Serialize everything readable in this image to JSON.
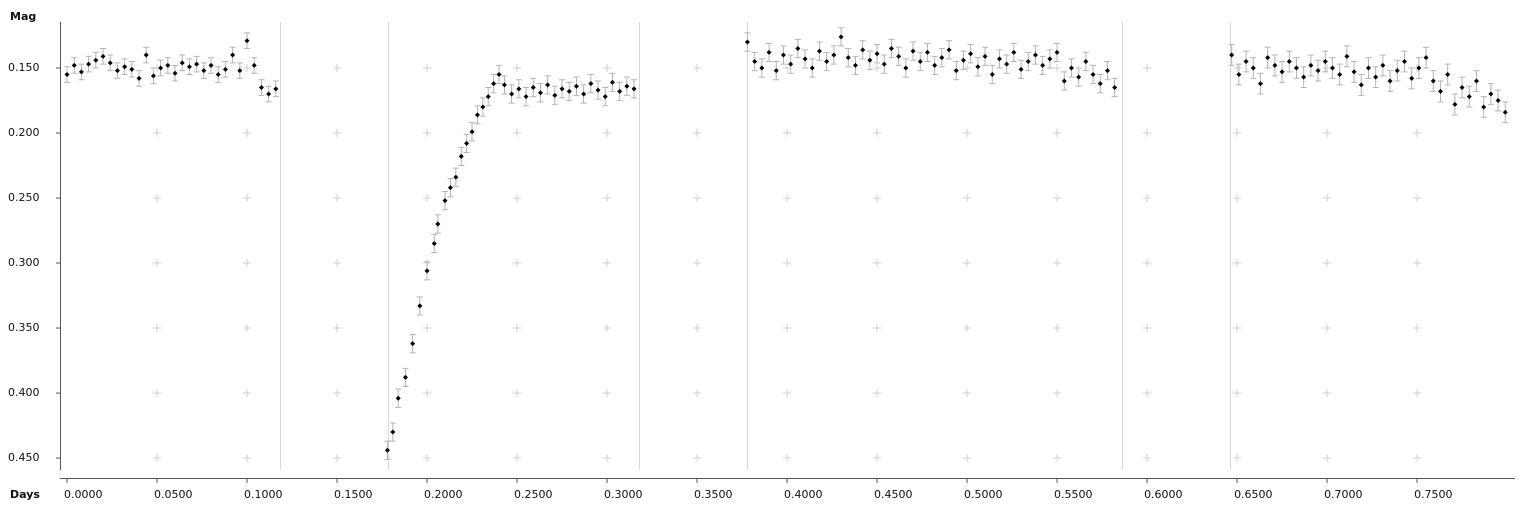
{
  "chart_data": {
    "type": "scatter",
    "y_label": "Mag",
    "x_label": "Days",
    "y_inverted": true,
    "color": "#000000",
    "error_color": "#b4b4b4",
    "xlim": [
      -0.0039,
      0.8044
    ],
    "ylim": [
      0.1146,
      0.4592
    ],
    "xticks": [
      {
        "value": 0,
        "label": "0.0000"
      },
      {
        "value": 0.05,
        "label": "0.0500"
      },
      {
        "value": 0.1,
        "label": "0.1000"
      },
      {
        "value": 0.15,
        "label": "0.1500"
      },
      {
        "value": 0.2,
        "label": "0.2000"
      },
      {
        "value": 0.25,
        "label": "0.2500"
      },
      {
        "value": 0.3,
        "label": "0.3000"
      },
      {
        "value": 0.35,
        "label": "0.3500"
      },
      {
        "value": 0.4,
        "label": "0.4000"
      },
      {
        "value": 0.45,
        "label": "0.4500"
      },
      {
        "value": 0.5,
        "label": "0.5000"
      },
      {
        "value": 0.55,
        "label": "0.5500"
      },
      {
        "value": 0.6,
        "label": "0.6000"
      },
      {
        "value": 0.65,
        "label": "0.6500"
      },
      {
        "value": 0.7,
        "label": "0.7000"
      },
      {
        "value": 0.75,
        "label": "0.7500"
      }
    ],
    "yticks": [
      {
        "value": 0.15,
        "label": "0.150"
      },
      {
        "value": 0.2,
        "label": "0.200"
      },
      {
        "value": 0.25,
        "label": "0.250"
      },
      {
        "value": 0.3,
        "label": "0.300"
      },
      {
        "value": 0.35,
        "label": "0.350"
      },
      {
        "value": 0.4,
        "label": "0.400"
      },
      {
        "value": 0.45,
        "label": "0.450"
      }
    ],
    "grid": true,
    "series": [
      {
        "error": 0.006,
        "x": [
          0.0,
          0.004,
          0.008,
          0.012,
          0.016,
          0.02,
          0.024,
          0.028,
          0.032,
          0.036,
          0.04,
          0.044,
          0.048,
          0.052,
          0.056,
          0.06,
          0.064,
          0.068,
          0.072,
          0.076,
          0.08,
          0.084,
          0.088,
          0.092,
          0.096,
          0.1,
          0.104,
          0.108,
          0.112,
          0.116
        ],
        "values": [
          0.155,
          0.148,
          0.153,
          0.147,
          0.144,
          0.141,
          0.146,
          0.152,
          0.149,
          0.151,
          0.158,
          0.14,
          0.156,
          0.15,
          0.148,
          0.154,
          0.146,
          0.149,
          0.147,
          0.152,
          0.148,
          0.155,
          0.151,
          0.14,
          0.152,
          0.129,
          0.148,
          0.165,
          0.17,
          0.166
        ]
      },
      {
        "error": 0.007,
        "x": [
          0.178,
          0.181,
          0.184,
          0.188,
          0.192,
          0.196,
          0.2,
          0.204,
          0.206,
          0.21,
          0.213,
          0.216,
          0.219,
          0.222,
          0.225,
          0.228,
          0.231,
          0.234,
          0.237,
          0.24,
          0.243,
          0.247,
          0.251,
          0.255,
          0.259,
          0.263,
          0.267,
          0.271,
          0.275,
          0.279,
          0.283,
          0.287,
          0.291,
          0.295,
          0.299,
          0.303,
          0.307,
          0.311,
          0.315
        ],
        "values": [
          0.444,
          0.43,
          0.404,
          0.388,
          0.362,
          0.333,
          0.306,
          0.285,
          0.27,
          0.252,
          0.242,
          0.234,
          0.218,
          0.208,
          0.199,
          0.186,
          0.18,
          0.172,
          0.162,
          0.155,
          0.163,
          0.17,
          0.166,
          0.172,
          0.165,
          0.169,
          0.163,
          0.171,
          0.166,
          0.168,
          0.164,
          0.17,
          0.162,
          0.167,
          0.172,
          0.161,
          0.168,
          0.164,
          0.166
        ]
      },
      {
        "error": 0.007,
        "x": [
          0.378,
          0.382,
          0.386,
          0.39,
          0.394,
          0.398,
          0.402,
          0.406,
          0.41,
          0.414,
          0.418,
          0.422,
          0.426,
          0.43,
          0.434,
          0.438,
          0.442,
          0.446,
          0.45,
          0.454,
          0.458,
          0.462,
          0.466,
          0.47,
          0.474,
          0.478,
          0.482,
          0.486,
          0.49,
          0.494,
          0.498,
          0.502,
          0.506,
          0.51,
          0.514,
          0.518,
          0.522,
          0.526,
          0.53,
          0.534,
          0.538,
          0.542,
          0.546,
          0.55,
          0.554,
          0.558,
          0.562,
          0.566,
          0.57,
          0.574,
          0.578,
          0.582
        ],
        "values": [
          0.13,
          0.145,
          0.15,
          0.138,
          0.152,
          0.14,
          0.147,
          0.135,
          0.143,
          0.15,
          0.137,
          0.145,
          0.14,
          0.126,
          0.142,
          0.148,
          0.136,
          0.144,
          0.139,
          0.147,
          0.135,
          0.141,
          0.15,
          0.137,
          0.145,
          0.138,
          0.148,
          0.142,
          0.136,
          0.152,
          0.144,
          0.139,
          0.149,
          0.141,
          0.155,
          0.143,
          0.147,
          0.138,
          0.151,
          0.145,
          0.14,
          0.148,
          0.143,
          0.138,
          0.16,
          0.15,
          0.157,
          0.145,
          0.155,
          0.162,
          0.152,
          0.165
        ]
      },
      {
        "error": 0.008,
        "x": [
          0.647,
          0.651,
          0.655,
          0.659,
          0.663,
          0.667,
          0.671,
          0.675,
          0.679,
          0.683,
          0.687,
          0.691,
          0.695,
          0.699,
          0.703,
          0.707,
          0.711,
          0.715,
          0.719,
          0.723,
          0.727,
          0.731,
          0.735,
          0.739,
          0.743,
          0.747,
          0.751,
          0.755,
          0.759,
          0.763,
          0.767,
          0.771,
          0.775,
          0.779,
          0.783,
          0.787,
          0.791,
          0.795,
          0.799
        ],
        "values": [
          0.14,
          0.155,
          0.145,
          0.15,
          0.162,
          0.142,
          0.148,
          0.153,
          0.145,
          0.15,
          0.157,
          0.148,
          0.152,
          0.145,
          0.15,
          0.155,
          0.141,
          0.153,
          0.163,
          0.15,
          0.157,
          0.148,
          0.16,
          0.152,
          0.145,
          0.158,
          0.15,
          0.142,
          0.16,
          0.168,
          0.155,
          0.178,
          0.165,
          0.172,
          0.16,
          0.18,
          0.17,
          0.175,
          0.184
        ]
      }
    ]
  }
}
